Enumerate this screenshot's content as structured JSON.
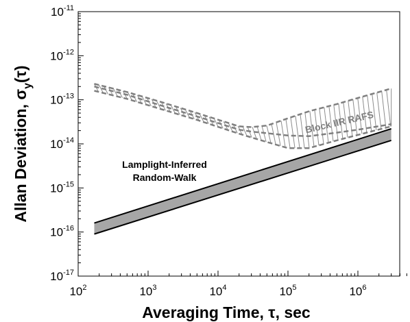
{
  "chart_data": {
    "type": "line",
    "xlabel": "Averaging Time, τ, sec",
    "ylabel_main": "Allan Deviation, σ",
    "ylabel_sub": "y",
    "ylabel_tail": "(τ)",
    "x_scale": "log",
    "y_scale": "log",
    "xlim": [
      100,
      6000000
    ],
    "ylim": [
      1e-17,
      1e-11
    ],
    "x_ticks": [
      {
        "value": 100,
        "base": "10",
        "exp": "2"
      },
      {
        "value": 1000,
        "base": "10",
        "exp": "3"
      },
      {
        "value": 10000,
        "base": "10",
        "exp": "4"
      },
      {
        "value": 100000,
        "base": "10",
        "exp": "5"
      },
      {
        "value": 1000000,
        "base": "10",
        "exp": "6"
      }
    ],
    "y_ticks": [
      {
        "value": 1e-17,
        "base": "10",
        "exp": "-17"
      },
      {
        "value": 1e-16,
        "base": "10",
        "exp": "-16"
      },
      {
        "value": 1e-15,
        "base": "10",
        "exp": "-15"
      },
      {
        "value": 1e-14,
        "base": "10",
        "exp": "-14"
      },
      {
        "value": 1e-13,
        "base": "10",
        "exp": "-13"
      },
      {
        "value": 1e-12,
        "base": "10",
        "exp": "-12"
      },
      {
        "value": 1e-11,
        "base": "10",
        "exp": "-11"
      }
    ],
    "grid": false,
    "colors": {
      "band_fill": "#a6a6a6",
      "band_edge": "#000000",
      "rafs_line": "#7f7f7f",
      "hatch": "#8c8c8c"
    },
    "series": [
      {
        "name": "Lamplight-Inferred Random-Walk",
        "kind": "band",
        "x": [
          170,
          3000000
        ],
        "upper": [
          1.6e-16,
          2.2e-14
        ],
        "lower": [
          9e-17,
          1.2e-14
        ]
      },
      {
        "name": "Block IIR RAFS",
        "kind": "hatched-band",
        "x": [
          170,
          500,
          1500,
          5000,
          20000,
          30000,
          50000,
          100000,
          200000,
          500000,
          1000000,
          3000000
        ],
        "upper": [
          2.3e-13,
          1.5e-13,
          9e-14,
          5e-14,
          2.5e-14,
          2.4e-14,
          2.6e-14,
          3.8e-14,
          5.5e-14,
          8e-14,
          1.1e-13,
          1.8e-13
        ],
        "middle": [
          2e-13,
          1.3e-13,
          7.5e-14,
          4.2e-14,
          2.1e-14,
          1.9e-14,
          1.75e-14,
          1.55e-14,
          1.5e-14,
          1.8e-14,
          2.1e-14,
          2.8e-14
        ],
        "lower": [
          1.6e-13,
          1.05e-13,
          6.2e-14,
          3.5e-14,
          1.7e-14,
          1.4e-14,
          1.1e-14,
          8e-15,
          8e-15,
          1.2e-14,
          1.6e-14,
          2.5e-14
        ]
      }
    ],
    "annotations": [
      {
        "id": "lamp",
        "lines": [
          "Lamplight-Inferred",
          "Random-Walk"
        ]
      },
      {
        "id": "rafs",
        "lines": [
          "Block IIR RAFS"
        ]
      }
    ]
  }
}
